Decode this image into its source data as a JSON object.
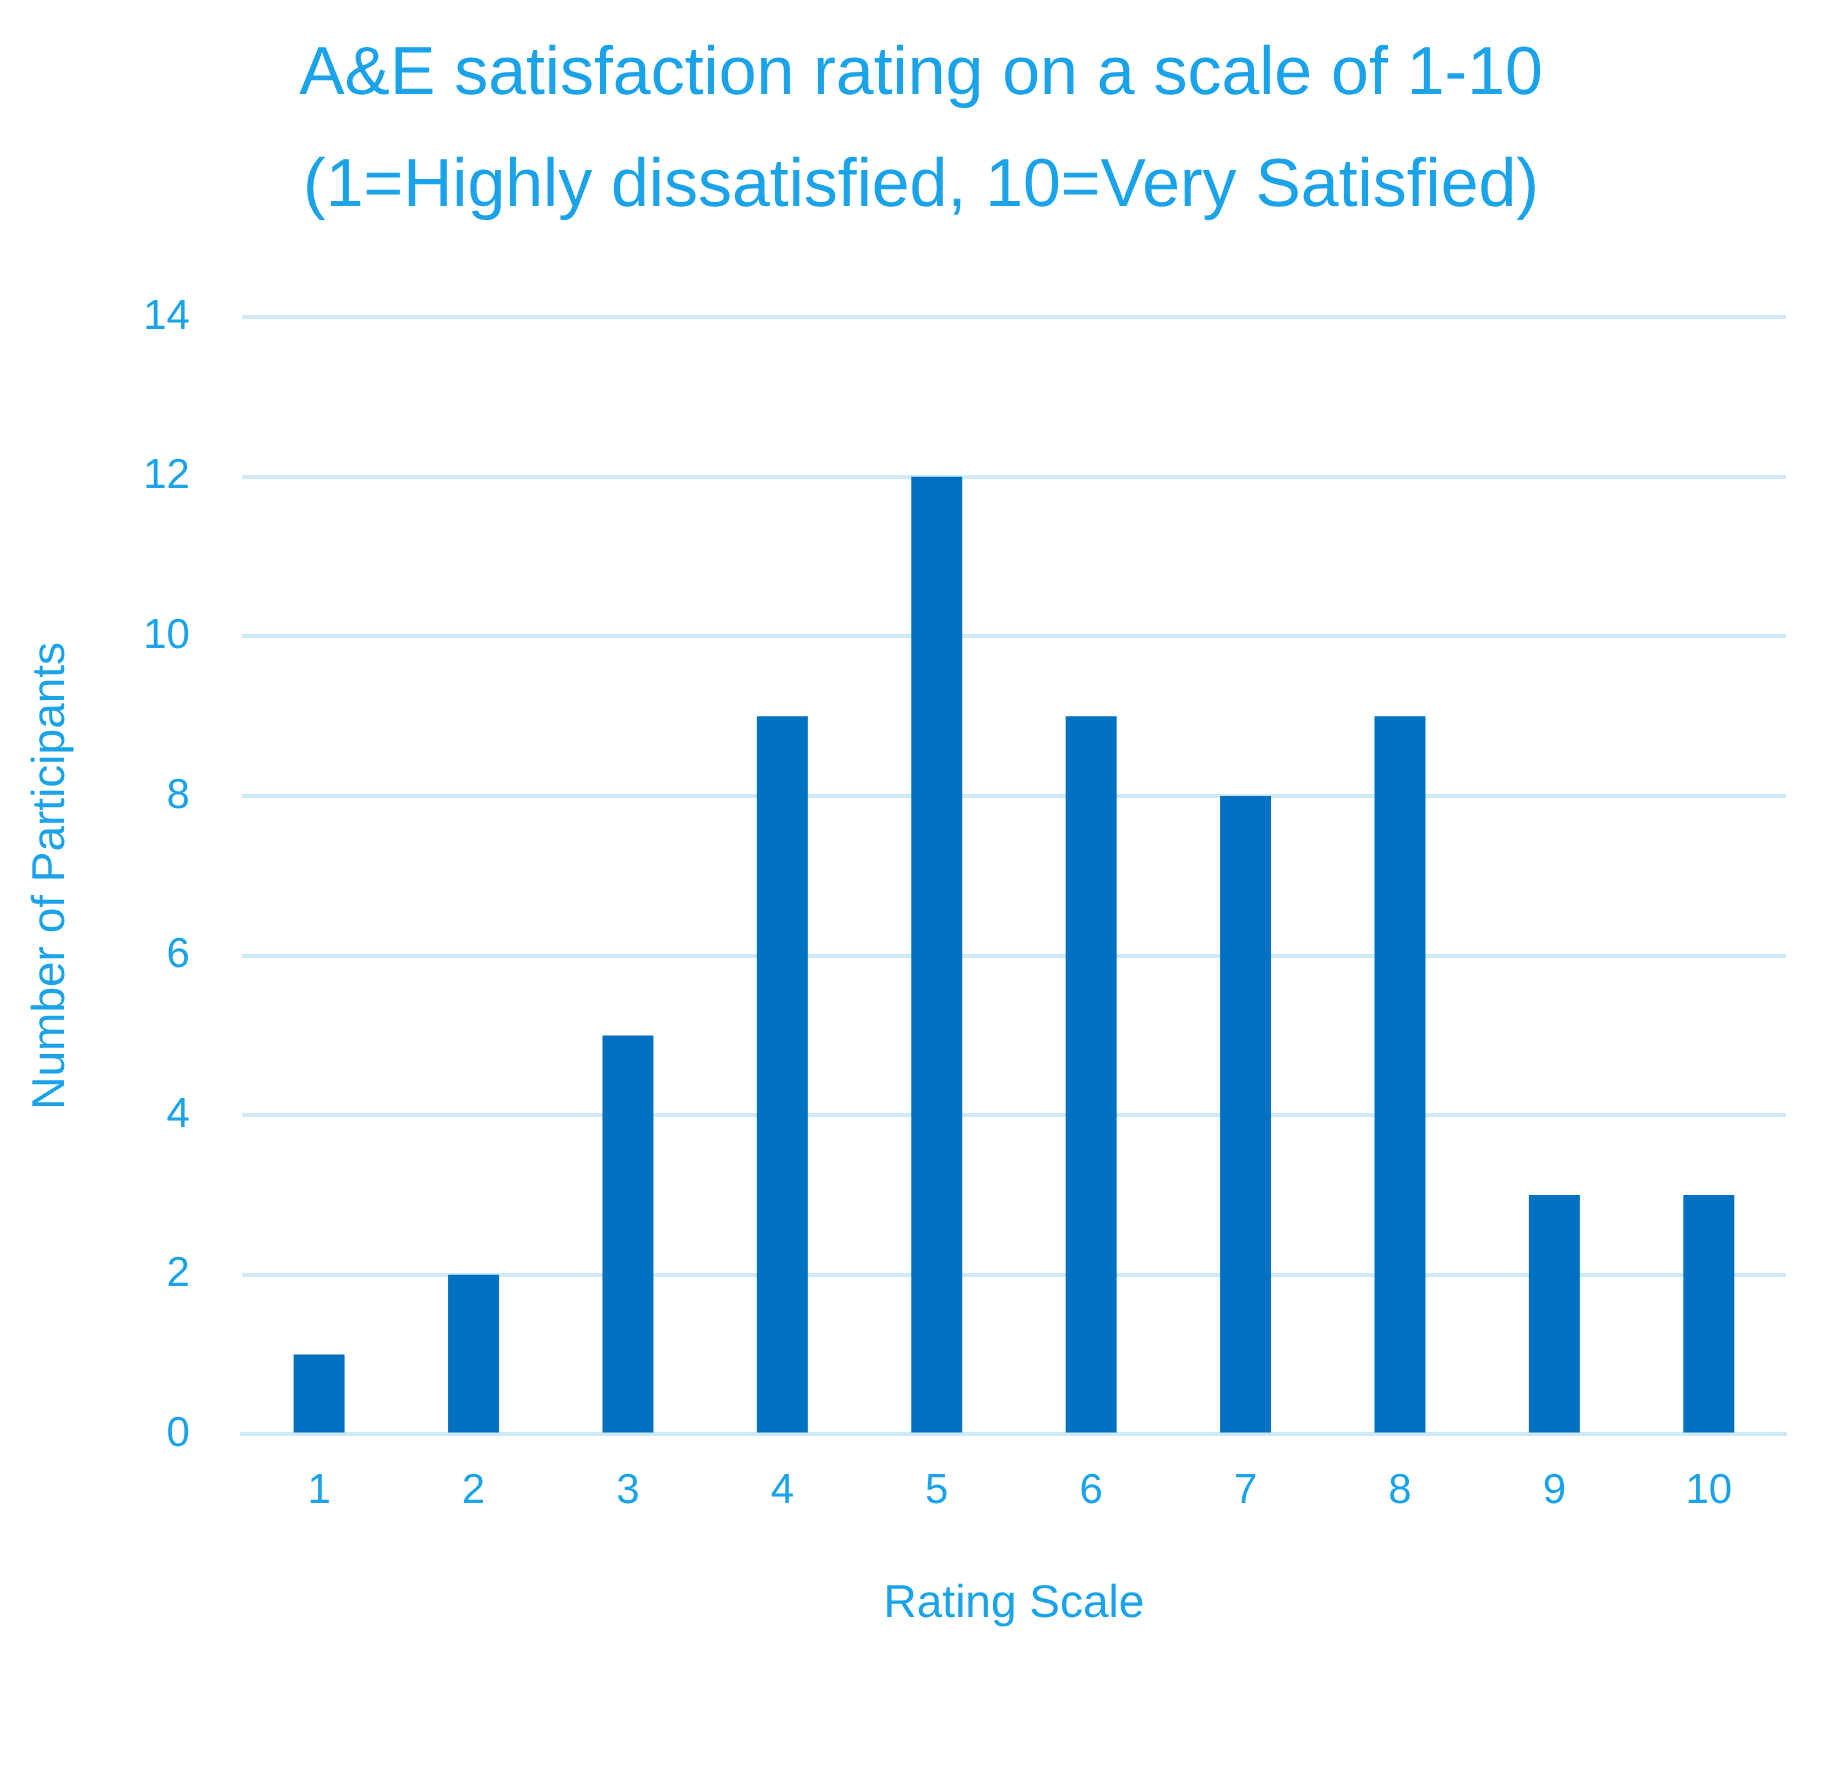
{
  "chart_data": {
    "type": "bar",
    "title": "A&E satisfaction rating on a scale of 1-10 (1=Highly dissatisfied, 10=Very Satisfied)",
    "xlabel": "Rating Scale",
    "ylabel": "Number of Participants",
    "categories": [
      "1",
      "2",
      "3",
      "4",
      "5",
      "6",
      "7",
      "8",
      "9",
      "10"
    ],
    "values": [
      1,
      2,
      5,
      9,
      12,
      9,
      8,
      9,
      3,
      3
    ],
    "color": "#0070c0",
    "ylim": [
      0,
      14
    ],
    "yticks": [
      0,
      2,
      4,
      6,
      8,
      10,
      12,
      14
    ],
    "grid": "y",
    "legend": false
  }
}
